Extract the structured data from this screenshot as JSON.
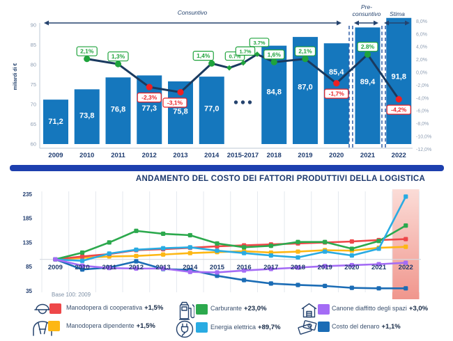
{
  "chart_data": [
    {
      "type": "bar+line",
      "title": "",
      "ylabel": "miliardi di €",
      "categories": [
        "2009",
        "2010",
        "2011",
        "2012",
        "2013",
        "2014",
        "2015-2017",
        "2018",
        "2019",
        "2020",
        "2021",
        "2022"
      ],
      "bar_values": [
        71.2,
        73.8,
        76.8,
        77.3,
        75.8,
        77.0,
        null,
        84.8,
        87.0,
        85.4,
        89.4,
        91.8
      ],
      "bar_labels": [
        "71,2",
        "73,8",
        "76,8",
        "77,3",
        "75,8",
        "77,0",
        "",
        "84,8",
        "87,0",
        "85,4",
        "89,4",
        "91,8"
      ],
      "left_axis": {
        "min": 60,
        "max": 90,
        "ticks": [
          "90",
          "85",
          "80",
          "75",
          "70",
          "65",
          "60"
        ]
      },
      "right_axis": {
        "min": -12,
        "max": 8,
        "ticks": [
          "8,0%",
          "6,0%",
          "4,0%",
          "2,0%",
          "0,0%",
          "-2,0%",
          "-4,0%",
          "-6,0%",
          "-8,0%",
          "-10,0%",
          "-12,0%"
        ]
      },
      "growth_line": [
        {
          "year": "2010",
          "pct": 2.1,
          "label": "2,1%"
        },
        {
          "year": "2011",
          "pct": 1.3,
          "label": "1,3%"
        },
        {
          "year": "2012",
          "pct": -2.3,
          "label": "-2,3%"
        },
        {
          "year": "2013",
          "pct": -3.1,
          "label": "-3,1%"
        },
        {
          "year": "2015",
          "pct": 1.4,
          "label": "1,4%"
        },
        {
          "year": "2015",
          "pct": 0.7,
          "label": "0.7%",
          "small": true
        },
        {
          "year": "2016",
          "pct": 1.7,
          "label": "1.7%",
          "small": true
        },
        {
          "year": "2017",
          "pct": 3.7,
          "label": "3.7%",
          "small": true
        },
        {
          "year": "2018",
          "pct": 1.6,
          "label": "1,6%"
        },
        {
          "year": "2019",
          "pct": 2.1,
          "label": "2,1%"
        },
        {
          "year": "2020",
          "pct": -1.7,
          "label": "-1,7%"
        },
        {
          "year": "2021",
          "pct": 2.8,
          "label": "2.8%"
        },
        {
          "year": "2022",
          "pct": -4.2,
          "label": "-4,2%"
        }
      ],
      "annotations": {
        "consuntivo": "Consuntivo",
        "pre_consuntivo": [
          "Pre-",
          "consuntivo"
        ],
        "stima": "Stima",
        "ellipsis": "• • •"
      },
      "colors": {
        "bar": "#1577bd",
        "line": "#1a3a5f",
        "positive": "#1fa33c",
        "negative": "#ed2024"
      }
    },
    {
      "type": "line",
      "title": "ANDAMENTO DEL COSTO DEI FATTORI PRODUTTIVI DELLA LOGISTICA",
      "note": "Base 100: 2009",
      "x": [
        "2009",
        "2010",
        "2011",
        "2012",
        "2013",
        "2014",
        "2015",
        "2016",
        "2017",
        "2018",
        "2019",
        "2020",
        "2021",
        "2022"
      ],
      "ylim": [
        35,
        235
      ],
      "yticks": [
        "235",
        "185",
        "135",
        "85",
        "35"
      ],
      "baseline": 100,
      "highlight_year": "2022",
      "series": [
        {
          "name": "Manodopera di cooperativa",
          "change_label": "+1,5%",
          "color": "#ee4749",
          "icon": "worker",
          "values": [
            100,
            106,
            111,
            119,
            121,
            124,
            127,
            129,
            131,
            133,
            135,
            137,
            140,
            142
          ]
        },
        {
          "name": "Manodopera dipendente",
          "change_label": "+1,5%",
          "color": "#fdb714",
          "icon": "worker",
          "values": [
            100,
            103,
            106,
            107,
            110,
            113,
            115,
            117,
            114,
            116,
            119,
            118,
            124,
            126
          ]
        },
        {
          "name": "Carburante",
          "change_label": "+23,0%",
          "color": "#2ca94d",
          "icon": "fuel-pump",
          "values": [
            100,
            114,
            135,
            159,
            153,
            150,
            133,
            125,
            128,
            136,
            136,
            122,
            138,
            170
          ]
        },
        {
          "name": "Energia elettrica",
          "change_label": "+89,7%",
          "color": "#29abe2",
          "icon": "plug",
          "values": [
            100,
            97,
            112,
            120,
            123,
            125,
            118,
            113,
            108,
            104,
            116,
            108,
            122,
            230
          ]
        },
        {
          "name": "Canone diaffitto degli spazi",
          "change_label": "+3,0%",
          "color": "#a46cf5",
          "icon": "warehouse",
          "values": [
            100,
            87,
            82,
            81,
            81,
            74,
            73,
            77,
            80,
            83,
            86,
            88,
            90,
            93
          ]
        },
        {
          "name": "Costo del denaro",
          "change_label": "+1,1%",
          "color": "#1b6cb5",
          "icon": "money",
          "values": [
            100,
            79,
            83,
            96,
            80,
            78,
            66,
            57,
            50,
            47,
            45,
            41,
            40,
            40
          ]
        }
      ]
    }
  ]
}
